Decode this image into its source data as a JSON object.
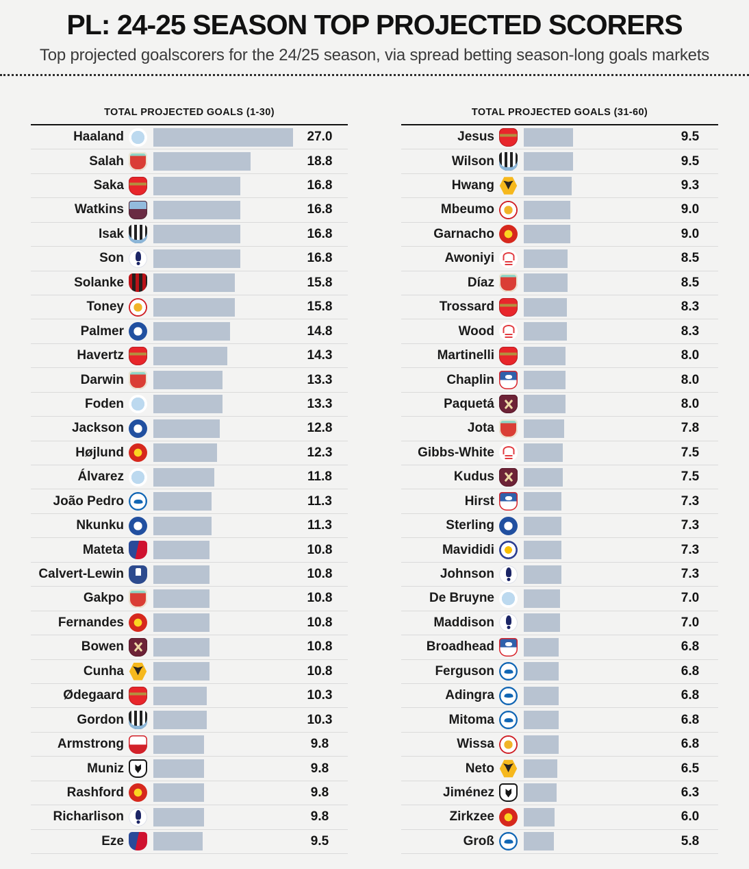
{
  "header": {
    "title": "PL: 24-25 SEASON TOP PROJECTED SCORERS",
    "subtitle": "Top projected goalscorers for the 24/25 season, via spread betting season-long goals markets"
  },
  "colors": {
    "background": "#f3f3f2",
    "bar": "#b8c3d1",
    "header_rule": "#111111",
    "row_divider": "#dadada",
    "text": "#161616"
  },
  "chart_data": {
    "type": "bar",
    "orientation": "horizontal",
    "title": "PL: 24-25 SEASON TOP PROJECTED SCORERS",
    "subtitle": "Top projected goalscorers for the 24/25 season, via spread betting season-long goals markets",
    "value_axis": "Total projected goals (spread betting season-long goals markets)",
    "value_range": [
      0,
      27.0
    ],
    "grid": false,
    "legend": false,
    "panels": [
      {
        "header": "TOTAL PROJECTED GOALS (1-30)",
        "players": [
          {
            "name": "Haaland",
            "club": "man-city",
            "value": 27.0,
            "label": "27.0"
          },
          {
            "name": "Salah",
            "club": "liverpool",
            "value": 18.8,
            "label": "18.8"
          },
          {
            "name": "Saka",
            "club": "arsenal",
            "value": 16.8,
            "label": "16.8"
          },
          {
            "name": "Watkins",
            "club": "aston-villa",
            "value": 16.8,
            "label": "16.8"
          },
          {
            "name": "Isak",
            "club": "newcastle",
            "value": 16.8,
            "label": "16.8"
          },
          {
            "name": "Son",
            "club": "tottenham",
            "value": 16.8,
            "label": "16.8"
          },
          {
            "name": "Solanke",
            "club": "bournemouth",
            "value": 15.8,
            "label": "15.8"
          },
          {
            "name": "Toney",
            "club": "brentford",
            "value": 15.8,
            "label": "15.8"
          },
          {
            "name": "Palmer",
            "club": "chelsea",
            "value": 14.8,
            "label": "14.8"
          },
          {
            "name": "Havertz",
            "club": "arsenal",
            "value": 14.3,
            "label": "14.3"
          },
          {
            "name": "Darwin",
            "club": "liverpool",
            "value": 13.3,
            "label": "13.3"
          },
          {
            "name": "Foden",
            "club": "man-city",
            "value": 13.3,
            "label": "13.3"
          },
          {
            "name": "Jackson",
            "club": "chelsea",
            "value": 12.8,
            "label": "12.8"
          },
          {
            "name": "Højlund",
            "club": "man-united",
            "value": 12.3,
            "label": "12.3"
          },
          {
            "name": "Álvarez",
            "club": "man-city",
            "value": 11.8,
            "label": "11.8"
          },
          {
            "name": "João Pedro",
            "club": "brighton",
            "value": 11.3,
            "label": "11.3"
          },
          {
            "name": "Nkunku",
            "club": "chelsea",
            "value": 11.3,
            "label": "11.3"
          },
          {
            "name": "Mateta",
            "club": "crystal-palace",
            "value": 10.8,
            "label": "10.8"
          },
          {
            "name": "Calvert-Lewin",
            "club": "everton",
            "value": 10.8,
            "label": "10.8"
          },
          {
            "name": "Gakpo",
            "club": "liverpool",
            "value": 10.8,
            "label": "10.8"
          },
          {
            "name": "Fernandes",
            "club": "man-united",
            "value": 10.8,
            "label": "10.8"
          },
          {
            "name": "Bowen",
            "club": "west-ham",
            "value": 10.8,
            "label": "10.8"
          },
          {
            "name": "Cunha",
            "club": "wolves",
            "value": 10.8,
            "label": "10.8"
          },
          {
            "name": "Ødegaard",
            "club": "arsenal",
            "value": 10.3,
            "label": "10.3"
          },
          {
            "name": "Gordon",
            "club": "newcastle",
            "value": 10.3,
            "label": "10.3"
          },
          {
            "name": "Armstrong",
            "club": "southampton",
            "value": 9.8,
            "label": "9.8"
          },
          {
            "name": "Muniz",
            "club": "fulham",
            "value": 9.8,
            "label": "9.8"
          },
          {
            "name": "Rashford",
            "club": "man-united",
            "value": 9.8,
            "label": "9.8"
          },
          {
            "name": "Richarlison",
            "club": "tottenham",
            "value": 9.8,
            "label": "9.8"
          },
          {
            "name": "Eze",
            "club": "crystal-palace",
            "value": 9.5,
            "label": "9.5"
          }
        ]
      },
      {
        "header": "TOTAL PROJECTED GOALS (31-60)",
        "players": [
          {
            "name": "Jesus",
            "club": "arsenal",
            "value": 9.5,
            "label": "9.5"
          },
          {
            "name": "Wilson",
            "club": "newcastle",
            "value": 9.5,
            "label": "9.5"
          },
          {
            "name": "Hwang",
            "club": "wolves",
            "value": 9.3,
            "label": "9.3"
          },
          {
            "name": "Mbeumo",
            "club": "brentford",
            "value": 9.0,
            "label": "9.0"
          },
          {
            "name": "Garnacho",
            "club": "man-united",
            "value": 9.0,
            "label": "9.0"
          },
          {
            "name": "Awoniyi",
            "club": "nottingham-forest",
            "value": 8.5,
            "label": "8.5"
          },
          {
            "name": "Díaz",
            "club": "liverpool",
            "value": 8.5,
            "label": "8.5"
          },
          {
            "name": "Trossard",
            "club": "arsenal",
            "value": 8.3,
            "label": "8.3"
          },
          {
            "name": "Wood",
            "club": "nottingham-forest",
            "value": 8.3,
            "label": "8.3"
          },
          {
            "name": "Martinelli",
            "club": "arsenal",
            "value": 8.0,
            "label": "8.0"
          },
          {
            "name": "Chaplin",
            "club": "ipswich",
            "value": 8.0,
            "label": "8.0"
          },
          {
            "name": "Paquetá",
            "club": "west-ham",
            "value": 8.0,
            "label": "8.0"
          },
          {
            "name": "Jota",
            "club": "liverpool",
            "value": 7.8,
            "label": "7.8"
          },
          {
            "name": "Gibbs-White",
            "club": "nottingham-forest",
            "value": 7.5,
            "label": "7.5"
          },
          {
            "name": "Kudus",
            "club": "west-ham",
            "value": 7.5,
            "label": "7.5"
          },
          {
            "name": "Hirst",
            "club": "ipswich",
            "value": 7.3,
            "label": "7.3"
          },
          {
            "name": "Sterling",
            "club": "chelsea",
            "value": 7.3,
            "label": "7.3"
          },
          {
            "name": "Mavididi",
            "club": "leicester",
            "value": 7.3,
            "label": "7.3"
          },
          {
            "name": "Johnson",
            "club": "tottenham",
            "value": 7.3,
            "label": "7.3"
          },
          {
            "name": "De Bruyne",
            "club": "man-city",
            "value": 7.0,
            "label": "7.0"
          },
          {
            "name": "Maddison",
            "club": "tottenham",
            "value": 7.0,
            "label": "7.0"
          },
          {
            "name": "Broadhead",
            "club": "ipswich",
            "value": 6.8,
            "label": "6.8"
          },
          {
            "name": "Ferguson",
            "club": "brighton",
            "value": 6.8,
            "label": "6.8"
          },
          {
            "name": "Adingra",
            "club": "brighton",
            "value": 6.8,
            "label": "6.8"
          },
          {
            "name": "Mitoma",
            "club": "brighton",
            "value": 6.8,
            "label": "6.8"
          },
          {
            "name": "Wissa",
            "club": "brentford",
            "value": 6.8,
            "label": "6.8"
          },
          {
            "name": "Neto",
            "club": "wolves",
            "value": 6.5,
            "label": "6.5"
          },
          {
            "name": "Jiménez",
            "club": "fulham",
            "value": 6.3,
            "label": "6.3"
          },
          {
            "name": "Zirkzee",
            "club": "man-united",
            "value": 6.0,
            "label": "6.0"
          },
          {
            "name": "Groß",
            "club": "brighton",
            "value": 5.8,
            "label": "5.8"
          }
        ]
      }
    ]
  }
}
